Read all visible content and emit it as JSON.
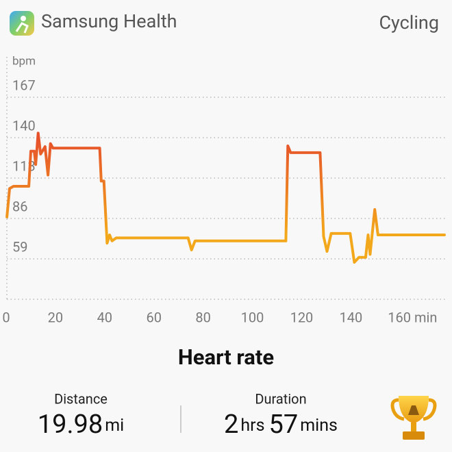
{
  "header": {
    "app_name": "Samsung Health",
    "activity": "Cycling"
  },
  "chart_data": {
    "type": "line",
    "title": "Heart rate",
    "ylabel": "bpm",
    "xlim": [
      0,
      178
    ],
    "ylim": [
      32,
      194
    ],
    "xticks": [
      0,
      20,
      40,
      60,
      80,
      100,
      120,
      140,
      {
        "value": 160,
        "label": "160 min"
      }
    ],
    "yticks": [
      59,
      86,
      113,
      140,
      167
    ],
    "grid": true,
    "gradient_colors": [
      "#e6502b",
      "#f3a81b"
    ],
    "series": [
      {
        "color": "#f3a81b",
        "x": [
          0.3,
          1.4,
          3,
          9.2,
          10,
          11.4,
          12,
          13,
          14,
          15.8,
          17,
          18,
          19,
          38,
          38.6,
          39.7,
          41,
          42,
          43,
          44.7,
          73.9,
          75.3,
          76.7,
          113.6,
          114.4,
          115.5,
          127.5,
          128.9,
          130.3,
          132,
          139.7,
          141.4,
          143.3,
          146,
          147,
          147.8,
          149.7,
          151,
          178
        ],
        "values": [
          87,
          106,
          107.5,
          107.5,
          131,
          131,
          122,
          143,
          129,
          134,
          115,
          136,
          133,
          133,
          111,
          111,
          69.5,
          75,
          71,
          73,
          73,
          65,
          71,
          71,
          134.5,
          130,
          130,
          74,
          64,
          76,
          76,
          56.7,
          60,
          60,
          75,
          62,
          92,
          75,
          75
        ]
      }
    ]
  },
  "summary": {
    "distance": {
      "label": "Distance",
      "value": 19.98,
      "unit": "mi"
    },
    "duration": {
      "label": "Duration",
      "hours": 2,
      "hours_unit": "hrs",
      "minutes": 57,
      "minutes_unit": "mins"
    }
  }
}
